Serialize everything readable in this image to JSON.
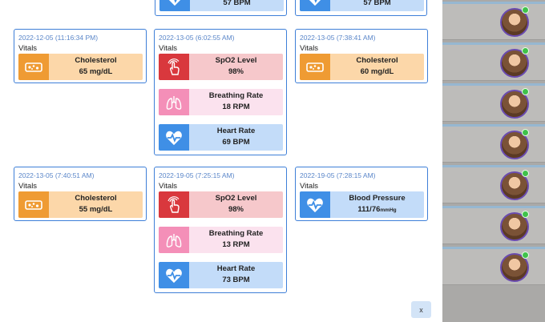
{
  "cards": [
    {
      "timestamp": "",
      "category": "",
      "vitals": [
        {
          "name": "",
          "value": "57 BPM"
        }
      ]
    },
    {
      "timestamp": "",
      "category": "",
      "vitals": [
        {
          "name": "",
          "value": "57 BPM"
        }
      ]
    },
    {
      "timestamp": "2022-12-05 (11:16:34 PM)",
      "category": "Vitals",
      "vitals": [
        {
          "type": "cholesterol",
          "name": "Cholesterol",
          "value": "65 mg/dL"
        }
      ]
    },
    {
      "timestamp": "2022-13-05 (6:02:55 AM)",
      "category": "Vitals",
      "vitals": [
        {
          "type": "spo2",
          "name": "SpO2 Level",
          "value": "98%"
        },
        {
          "type": "breathing",
          "name": "Breathing Rate",
          "value": "18 RPM"
        },
        {
          "type": "heart",
          "name": "Heart Rate",
          "value": "69 BPM"
        }
      ]
    },
    {
      "timestamp": "2022-13-05 (7:38:41 AM)",
      "category": "Vitals",
      "vitals": [
        {
          "type": "cholesterol",
          "name": "Cholesterol",
          "value": "60 mg/dL"
        }
      ]
    },
    {
      "timestamp": "2022-13-05 (7:40:51 AM)",
      "category": "Vitals",
      "vitals": [
        {
          "type": "cholesterol",
          "name": "Cholesterol",
          "value": "55 mg/dL"
        }
      ]
    },
    {
      "timestamp": "2022-19-05 (7:25:15 AM)",
      "category": "Vitals",
      "vitals": [
        {
          "type": "spo2",
          "name": "SpO2 Level",
          "value": "98%"
        },
        {
          "type": "breathing",
          "name": "Breathing Rate",
          "value": "13 RPM"
        },
        {
          "type": "heart",
          "name": "Heart Rate",
          "value": "73 BPM"
        }
      ]
    },
    {
      "timestamp": "2022-19-05 (7:28:15 AM)",
      "category": "Vitals",
      "vitals": [
        {
          "type": "blood-pressure",
          "name": "Blood Pressure",
          "value": "111/76",
          "unit": "mmHg"
        }
      ]
    }
  ],
  "close_label": "x",
  "colors": {
    "card_border": "#3e7fd8",
    "cholesterol": "#ef9b33",
    "spo2": "#d9383d",
    "breathing": "#f48fb8",
    "heart": "#3f8fe6"
  },
  "icons": {
    "cholesterol": "cholesterol-icon",
    "spo2": "finger-touch-icon",
    "breathing": "lungs-icon",
    "heart": "heart-pulse-icon"
  }
}
